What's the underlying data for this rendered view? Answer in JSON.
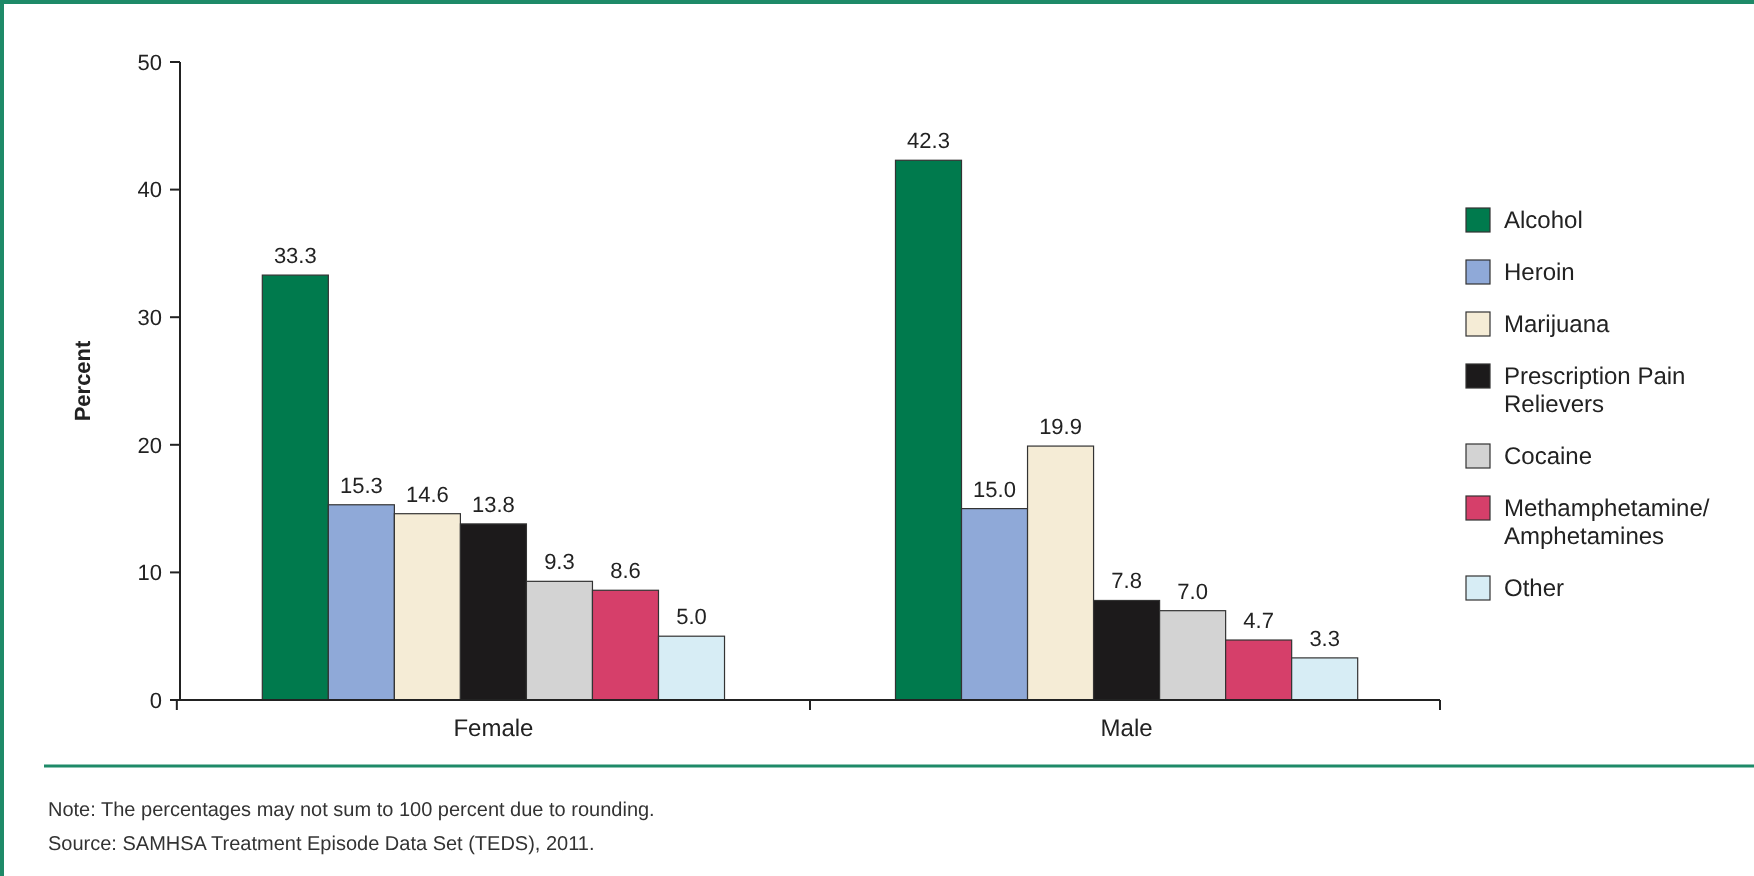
{
  "chart_data": {
    "type": "bar",
    "ylabel": "Percent",
    "categories": [
      "Female",
      "Male"
    ],
    "series": [
      {
        "name": "Alcohol",
        "color": "#007a4d",
        "values": [
          33.3,
          42.3
        ],
        "value_labels": [
          "33.3",
          "42.3"
        ]
      },
      {
        "name": "Heroin",
        "color": "#8fa9d8",
        "values": [
          15.3,
          15.0
        ],
        "value_labels": [
          "15.3",
          "15.0"
        ]
      },
      {
        "name": "Marijuana",
        "color": "#f5ecd6",
        "values": [
          14.6,
          19.9
        ],
        "value_labels": [
          "14.6",
          "19.9"
        ]
      },
      {
        "name": "Prescription Pain Relievers",
        "color": "#1c1a1b",
        "values": [
          13.8,
          7.8
        ],
        "value_labels": [
          "13.8",
          "7.8"
        ]
      },
      {
        "name": "Cocaine",
        "color": "#d3d3d3",
        "values": [
          9.3,
          7.0
        ],
        "value_labels": [
          "9.3",
          "7.0"
        ]
      },
      {
        "name": "Methamphetamine/Amphetamines",
        "color": "#d63f6a",
        "values": [
          8.6,
          4.7
        ],
        "value_labels": [
          "8.6",
          "4.7"
        ]
      },
      {
        "name": "Other",
        "color": "#d7edf5",
        "values": [
          5.0,
          3.3
        ],
        "value_labels": [
          "5.0",
          "3.3"
        ]
      }
    ],
    "ylim": [
      0,
      50
    ],
    "yticks": [
      0,
      10,
      20,
      30,
      40,
      50
    ],
    "grid": false,
    "legend": "right",
    "annotations": [
      "Note: The percentages may not sum to 100 percent due to rounding.",
      "Source: SAMHSA Treatment Episode Data Set (TEDS), 2011."
    ]
  }
}
